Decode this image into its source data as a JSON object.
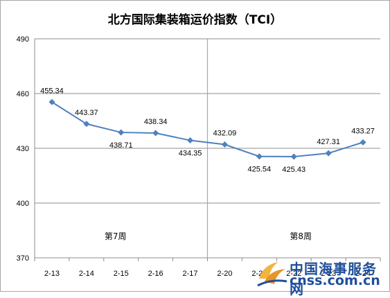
{
  "chart_data": {
    "type": "line",
    "title": "北方国际集装箱运价指数（TCI）",
    "categories": [
      "2-13",
      "2-14",
      "2-15",
      "2-16",
      "2-17",
      "2-20",
      "2-21",
      "2-22",
      "2-23",
      "2-24"
    ],
    "series": [
      {
        "values": [
          455.34,
          443.37,
          438.71,
          438.34,
          434.35,
          432.09,
          425.54,
          425.43,
          427.31,
          433.27
        ]
      }
    ],
    "data_labels": [
      "455.34",
      "443.37",
      "438.71",
      "438.34",
      "434.35",
      "432.09",
      "425.54",
      "425.43",
      "427.31",
      "433.27"
    ],
    "ylim": [
      370,
      490
    ],
    "yticks": [
      370,
      400,
      430,
      460,
      490
    ],
    "grid": "horizontal",
    "xlabel": "",
    "ylabel": "",
    "annotations": [
      "第7周",
      "第8周"
    ],
    "line_color": "#4f81bd",
    "divider_color": "#7fb2d9"
  },
  "watermark": {
    "cn": "中国海事服务网",
    "en": "cnss.com.cn"
  }
}
